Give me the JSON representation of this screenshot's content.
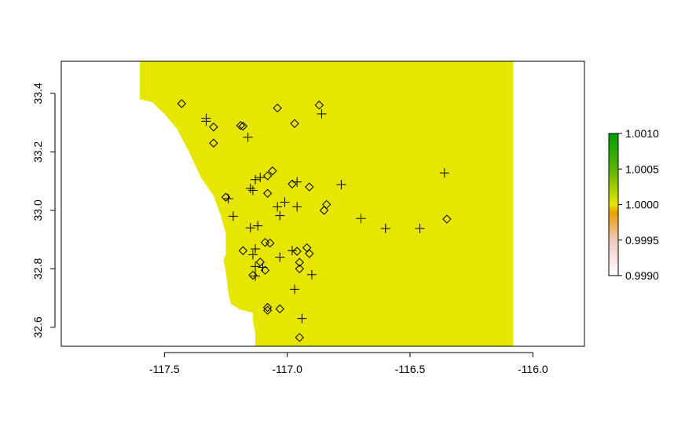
{
  "chart_data": {
    "type": "scatter",
    "title": "",
    "xlabel": "",
    "ylabel": "",
    "xlim": [
      -117.92,
      -115.79
    ],
    "ylim": [
      32.535,
      33.51
    ],
    "x_ticks": [
      "-117.5",
      "-117.0",
      "-116.5",
      "-116.0"
    ],
    "y_ticks": [
      "32.6",
      "32.8",
      "33.0",
      "33.2",
      "33.4"
    ],
    "grid": false,
    "raster": {
      "fill_color": "#e6e600",
      "value": 1.0,
      "x_extent": [
        -117.6,
        -116.08
      ],
      "y_extent": [
        32.535,
        33.51
      ],
      "coast_boundary": [
        [
          -117.6,
          33.51
        ],
        [
          -117.6,
          33.38
        ],
        [
          -117.55,
          33.37
        ],
        [
          -117.5,
          33.33
        ],
        [
          -117.45,
          33.28
        ],
        [
          -117.4,
          33.2
        ],
        [
          -117.35,
          33.11
        ],
        [
          -117.3,
          33.05
        ],
        [
          -117.27,
          32.98
        ],
        [
          -117.25,
          32.92
        ],
        [
          -117.25,
          32.85
        ],
        [
          -117.26,
          32.83
        ],
        [
          -117.25,
          32.79
        ],
        [
          -117.24,
          32.72
        ],
        [
          -117.23,
          32.68
        ],
        [
          -117.19,
          32.66
        ],
        [
          -117.14,
          32.65
        ],
        [
          -117.14,
          32.62
        ],
        [
          -117.13,
          32.58
        ],
        [
          -117.13,
          32.535
        ]
      ]
    },
    "legend": {
      "position": "right",
      "min_label": "0.9990",
      "labels": [
        "0.9990",
        "0.9995",
        "1.0000",
        "1.0005",
        "1.0010"
      ],
      "colors_bottom_to_top": [
        "#ffffff",
        "#f0c8c0",
        "#e6a000",
        "#e6e600",
        "#5ab400",
        "#00a000"
      ]
    },
    "series": [
      {
        "marker": "diamond",
        "points": [
          [
            -117.43,
            33.365
          ],
          [
            -117.3,
            33.285
          ],
          [
            -117.3,
            33.23
          ],
          [
            -117.19,
            33.29
          ],
          [
            -117.18,
            33.288
          ],
          [
            -117.04,
            33.35
          ],
          [
            -116.97,
            33.297
          ],
          [
            -116.87,
            33.36
          ],
          [
            -117.08,
            33.118
          ],
          [
            -117.06,
            33.135
          ],
          [
            -116.98,
            33.09
          ],
          [
            -116.91,
            33.08
          ],
          [
            -117.25,
            33.045
          ],
          [
            -117.08,
            33.058
          ],
          [
            -116.84,
            33.02
          ],
          [
            -116.85,
            33.0
          ],
          [
            -116.35,
            32.97
          ],
          [
            -117.18,
            32.862
          ],
          [
            -117.09,
            32.89
          ],
          [
            -117.07,
            32.888
          ],
          [
            -116.96,
            32.86
          ],
          [
            -116.92,
            32.872
          ],
          [
            -116.91,
            32.852
          ],
          [
            -117.11,
            32.823
          ],
          [
            -117.09,
            32.795
          ],
          [
            -117.14,
            32.778
          ],
          [
            -116.95,
            32.822
          ],
          [
            -116.95,
            32.8
          ],
          [
            -117.08,
            32.668
          ],
          [
            -117.08,
            32.658
          ],
          [
            -117.03,
            32.663
          ],
          [
            -116.95,
            32.565
          ]
        ]
      },
      {
        "marker": "plus",
        "points": [
          [
            -117.33,
            33.315
          ],
          [
            -117.33,
            33.305
          ],
          [
            -117.16,
            33.25
          ],
          [
            -116.86,
            33.33
          ],
          [
            -117.13,
            33.105
          ],
          [
            -117.11,
            33.112
          ],
          [
            -117.15,
            33.075
          ],
          [
            -117.14,
            33.068
          ],
          [
            -116.96,
            33.097
          ],
          [
            -116.78,
            33.088
          ],
          [
            -116.36,
            33.128
          ],
          [
            -117.24,
            33.04
          ],
          [
            -117.01,
            33.028
          ],
          [
            -117.04,
            33.012
          ],
          [
            -116.96,
            33.012
          ],
          [
            -117.22,
            32.98
          ],
          [
            -117.03,
            32.982
          ],
          [
            -116.7,
            32.972
          ],
          [
            -117.15,
            32.94
          ],
          [
            -117.12,
            32.947
          ],
          [
            -116.6,
            32.938
          ],
          [
            -116.46,
            32.938
          ],
          [
            -117.13,
            32.868
          ],
          [
            -116.98,
            32.862
          ],
          [
            -117.14,
            32.848
          ],
          [
            -117.03,
            32.84
          ],
          [
            -117.13,
            32.808
          ],
          [
            -117.1,
            32.805
          ],
          [
            -116.9,
            32.78
          ],
          [
            -117.13,
            32.775
          ],
          [
            -116.97,
            32.73
          ],
          [
            -116.94,
            32.63
          ]
        ]
      }
    ]
  }
}
